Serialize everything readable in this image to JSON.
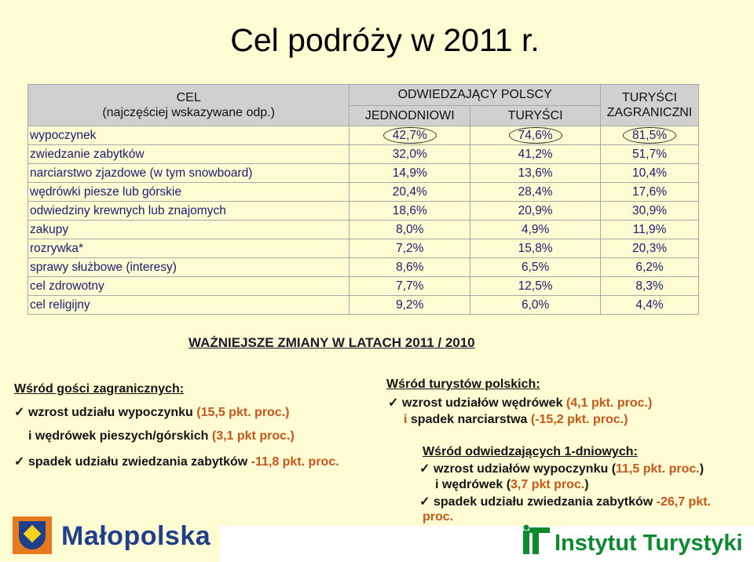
{
  "title": "Cel podróży w 2011 r.",
  "table": {
    "head": {
      "cel_line1": "CEL",
      "cel_line2": "(najczęściej wskazywane odp.)",
      "odwiedzajacy": "ODWIEDZAJĄCY POLSCY",
      "jednodniowi": "JEDNODNIOWI",
      "turysci": "TURYŚCI",
      "zagr_line1": "TURYŚCI",
      "zagr_line2": "ZAGRANICZNI"
    },
    "rows": [
      {
        "name": "wypoczynek",
        "a": "42,7%",
        "b": "74,6%",
        "c": "81,5%"
      },
      {
        "name": "zwiedzanie zabytków",
        "a": "32,0%",
        "b": "41,2%",
        "c": "51,7%"
      },
      {
        "name": "narciarstwo zjazdowe (w tym snowboard)",
        "a": "14,9%",
        "b": "13,6%",
        "c": "10,4%"
      },
      {
        "name": "wędrówki piesze lub górskie",
        "a": "20,4%",
        "b": "28,4%",
        "c": "17,6%"
      },
      {
        "name": "odwiedziny krewnych lub znajomych",
        "a": "18,6%",
        "b": "20,9%",
        "c": "30,9%"
      },
      {
        "name": "zakupy",
        "a": "8,0%",
        "b": "4,9%",
        "c": "11,9%"
      },
      {
        "name": "rozrywka*",
        "a": "7,2%",
        "b": "15,8%",
        "c": "20,3%"
      },
      {
        "name": "sprawy służbowe (interesy)",
        "a": "8,6%",
        "b": "6,5%",
        "c": "6,2%"
      },
      {
        "name": "cel zdrowotny",
        "a": "7,7%",
        "b": "12,5%",
        "c": "8,3%"
      },
      {
        "name": "cel religijny",
        "a": "9,2%",
        "b": "6,0%",
        "c": "4,4%"
      }
    ]
  },
  "changes_heading": "WAŻNIEJSZE ZMIANY W LATACH 2011 / 2010",
  "left": {
    "heading": "Wśród gości zagranicznych:",
    "l1_text": "wzrost udziału wypoczynku ",
    "l1_val": "(15,5 pkt. proc.)",
    "l2_pre": "i wędrówek pieszych/górskich ",
    "l2_val": "(3,1 pkt proc.)",
    "l3_text": "spadek udziału zwiedzania zabytków ",
    "l3_val": "-11,8 pkt. proc."
  },
  "right": {
    "heading1": "Wśród turystów polskich:",
    "r1_text": "wzrost udziałów wędrówek ",
    "r1_val": "(4,1 pkt. proc.)",
    "r2_i": "i",
    "r2_text": " spadek narciarstwa ",
    "r2_val": "(-15,2 pkt. proc.)",
    "heading2": "Wśród odwiedzających 1-dniowych:",
    "r3_text": "wzrost udziałów wypoczynku (",
    "r3_val": "11,5 pkt. proc.",
    "r3_close": ")",
    "r4_text": "i wędrówek (",
    "r4_val": "3,7 pkt proc.",
    "r4_close": ")",
    "r5_text": "spadek udziału zwiedzania zabytków ",
    "r5_val": "-26,7 pkt.",
    "r6_val": "proc."
  },
  "logos": {
    "malopolska": "Małopolska",
    "instytut": "Instytut Turystyki"
  },
  "colors": {
    "background": "#fdfcd2",
    "header": "#d0d0d0",
    "table_text": "#1c1c72",
    "highlight": "#c8551c",
    "malopolska_blue": "#1f3f8a",
    "instytut_green": "#0c8a2e"
  },
  "icons": {
    "check": "✓"
  }
}
